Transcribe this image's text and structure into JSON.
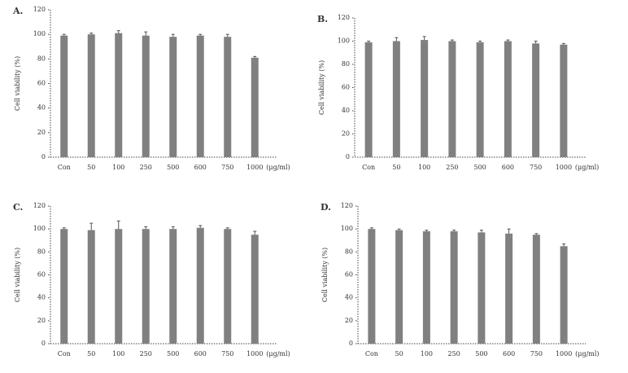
{
  "chart_data": [
    {
      "type": "bar",
      "title": "A.",
      "y_label": "Cell viability (%)",
      "x_label": "(μg/ml)",
      "categories": [
        "Con",
        "50",
        "100",
        "250",
        "500",
        "600",
        "750",
        "1000"
      ],
      "values": [
        99,
        100,
        101,
        99,
        98,
        99,
        98,
        81
      ],
      "errors": [
        1,
        1,
        2,
        3,
        2,
        1,
        2,
        1
      ],
      "color": "#808080",
      "ylim": [
        0,
        120
      ],
      "yticks": [
        0,
        20,
        40,
        60,
        80,
        100,
        120
      ]
    },
    {
      "type": "bar",
      "title": "B.",
      "y_label": "Cell viability (%)",
      "x_label": "(μg/ml)",
      "categories": [
        "Con",
        "50",
        "100",
        "250",
        "500",
        "600",
        "750",
        "1000"
      ],
      "values": [
        99,
        100,
        101,
        100,
        99,
        100,
        98,
        97
      ],
      "errors": [
        1,
        3,
        3,
        1,
        1,
        1,
        2,
        1
      ],
      "color": "#808080",
      "ylim": [
        0,
        120
      ],
      "yticks": [
        0,
        20,
        40,
        60,
        80,
        100,
        120
      ]
    },
    {
      "type": "bar",
      "title": "C.",
      "y_label": "Cell viability (%)",
      "x_label": "(μg/ml)",
      "categories": [
        "Con",
        "50",
        "100",
        "250",
        "500",
        "600",
        "750",
        "1000"
      ],
      "values": [
        100,
        99,
        100,
        100,
        100,
        101,
        100,
        95
      ],
      "errors": [
        1,
        6,
        7,
        2,
        2,
        2,
        1,
        3
      ],
      "color": "#808080",
      "ylim": [
        0,
        120
      ],
      "yticks": [
        0,
        20,
        40,
        60,
        80,
        100,
        120
      ]
    },
    {
      "type": "bar",
      "title": "D.",
      "y_label": "Cell viability (%)",
      "x_label": "(μg/ml)",
      "categories": [
        "Con",
        "50",
        "100",
        "250",
        "500",
        "600",
        "750",
        "1000"
      ],
      "values": [
        100,
        99,
        98,
        98,
        97,
        96,
        95,
        85
      ],
      "errors": [
        1,
        1,
        1,
        1,
        2,
        4,
        1,
        2
      ],
      "color": "#808080",
      "ylim": [
        0,
        120
      ],
      "yticks": [
        0,
        20,
        40,
        60,
        80,
        100,
        120
      ]
    }
  ]
}
